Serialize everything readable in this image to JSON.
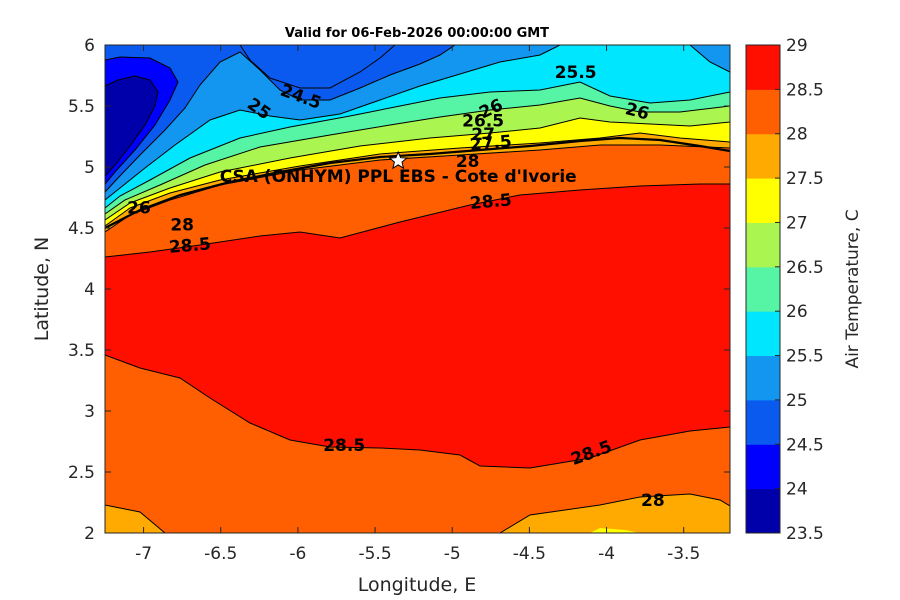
{
  "chart_data": {
    "type": "contour",
    "title": "Valid for 06-Feb-2026 00:00:00 GMT",
    "xlabel": "Longitude, E",
    "ylabel": "Latitude, N",
    "colorbar_label": "Air Temperature, C",
    "xlim": [
      -7.25,
      -3.2
    ],
    "ylim": [
      2,
      6
    ],
    "x_ticks": [
      -7,
      -6.5,
      -6,
      -5.5,
      -5,
      -4.5,
      -4,
      -3.5
    ],
    "x_tick_labels": [
      "-7",
      "-6.5",
      "-6",
      "-5.5",
      "-5",
      "-4.5",
      "-4",
      "-3.5"
    ],
    "y_ticks": [
      2,
      2.5,
      3,
      3.5,
      4,
      4.5,
      5,
      5.5,
      6
    ],
    "y_tick_labels": [
      "2",
      "2.5",
      "3",
      "3.5",
      "4",
      "4.5",
      "5",
      "5.5",
      "6"
    ],
    "colorbar": {
      "levels": [
        23.5,
        24,
        24.5,
        25,
        25.5,
        26,
        26.5,
        27,
        27.5,
        28,
        28.5,
        29
      ],
      "tick_labels": [
        "23.5",
        "24",
        "24.5",
        "25",
        "25.5",
        "26",
        "26.5",
        "27",
        "27.5",
        "28",
        "28.5",
        "29"
      ],
      "colors": [
        "#0000AA",
        "#0000FF",
        "#0A5AF0",
        "#1296F0",
        "#00E6FF",
        "#55F5A5",
        "#AAF550",
        "#FFFF00",
        "#FFAA00",
        "#FF5F00",
        "#FF0F00"
      ]
    },
    "station": {
      "name": "CSA (ONHYM) PPL EBS - Cote d'Ivorie",
      "lon": -5.35,
      "lat": 5.05,
      "marker": "star"
    },
    "contour_labels": [
      {
        "text": "24.5",
        "lon": -5.98,
        "lat": 5.58,
        "angle": 20
      },
      {
        "text": "25",
        "lon": -6.25,
        "lat": 5.48,
        "angle": 35
      },
      {
        "text": "25.5",
        "lon": -4.2,
        "lat": 5.78,
        "angle": 0
      },
      {
        "text": "26",
        "lon": -4.75,
        "lat": 5.48,
        "angle": -25
      },
      {
        "text": "26",
        "lon": -3.8,
        "lat": 5.46,
        "angle": 15
      },
      {
        "text": "26.5",
        "lon": -4.8,
        "lat": 5.38,
        "angle": 0
      },
      {
        "text": "27",
        "lon": -4.8,
        "lat": 5.27,
        "angle": 0
      },
      {
        "text": "27.5",
        "lon": -4.75,
        "lat": 5.2,
        "angle": -5
      },
      {
        "text": "28",
        "lon": -4.9,
        "lat": 5.05,
        "angle": 0
      },
      {
        "text": "28.5",
        "lon": -4.75,
        "lat": 4.72,
        "angle": -5
      },
      {
        "text": "28.5",
        "lon": -6.7,
        "lat": 4.36,
        "angle": -5
      },
      {
        "text": "28",
        "lon": -6.75,
        "lat": 4.53,
        "angle": 0
      },
      {
        "text": "26",
        "lon": -7.03,
        "lat": 4.67,
        "angle": 0
      },
      {
        "text": "28.5",
        "lon": -5.7,
        "lat": 2.72,
        "angle": 0
      },
      {
        "text": "28.5",
        "lon": -4.1,
        "lat": 2.66,
        "angle": -20
      },
      {
        "text": "28",
        "lon": -3.7,
        "lat": 2.27,
        "angle": 0
      }
    ]
  }
}
